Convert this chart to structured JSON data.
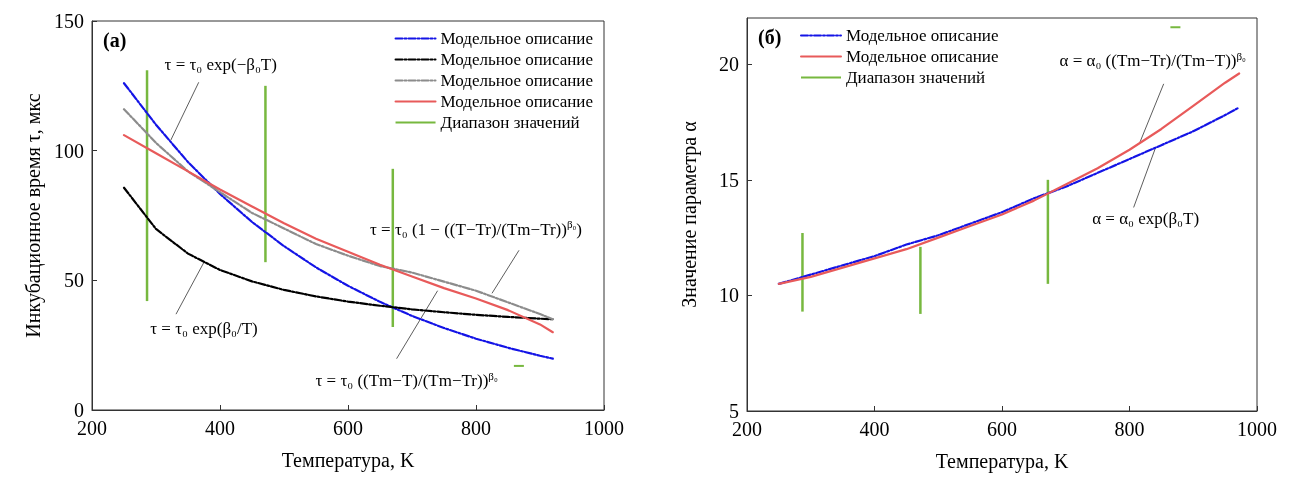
{
  "chart_data": [
    {
      "type": "line",
      "title": "(a)",
      "xlabel": "Температура, K",
      "ylabel": "Инкубационное время τ, мкс",
      "xlim": [
        200,
        1000
      ],
      "xticks": [
        200,
        400,
        600,
        800,
        1000
      ],
      "ylim": [
        0,
        150
      ],
      "yticks": [
        0,
        50,
        100,
        150
      ],
      "grid": false,
      "legend": "top right",
      "marker": "none",
      "series": [
        {
          "name": "Модельное описание",
          "color": "#1414e6",
          "line_style": "dashed",
          "x": [
            250,
            300,
            350,
            400,
            450,
            500,
            550,
            600,
            650,
            700,
            750,
            800,
            850,
            900,
            920
          ],
          "values": [
            126,
            110,
            95.6,
            83.3,
            72.5,
            63.2,
            55,
            47.9,
            41.7,
            36.3,
            31.6,
            27.5,
            24,
            20.9,
            19.8
          ]
        },
        {
          "name": "Модельное описание",
          "color": "#000000",
          "line_style": "dashed",
          "x": [
            250,
            300,
            350,
            400,
            450,
            500,
            550,
            600,
            650,
            700,
            750,
            800,
            850,
            900,
            920
          ],
          "values": [
            85.7,
            69.8,
            60.3,
            54,
            49.6,
            46.3,
            43.8,
            41.8,
            40.2,
            38.8,
            37.7,
            36.7,
            35.9,
            35.2,
            35
          ]
        },
        {
          "name": "Модельное описание",
          "color": "#8c8c8c",
          "line_style": "dashed",
          "x": [
            250,
            300,
            350,
            400,
            450,
            500,
            550,
            600,
            650,
            700,
            750,
            800,
            850,
            900,
            920
          ],
          "values": [
            116,
            103,
            92,
            84,
            76,
            70,
            64,
            59.5,
            55.5,
            53,
            49.5,
            46,
            41.5,
            37,
            35
          ]
        },
        {
          "name": "Модельное описание",
          "color": "#e85a5a",
          "line_style": "solid",
          "x": [
            250,
            300,
            350,
            400,
            450,
            500,
            550,
            600,
            650,
            700,
            750,
            800,
            850,
            900,
            920
          ],
          "values": [
            106,
            99,
            92,
            85,
            78.5,
            72,
            66,
            61,
            56,
            51.5,
            47,
            43,
            38.5,
            33,
            30
          ]
        },
        {
          "name": "Диапазон значений",
          "type": "bar",
          "color": "#77b83f",
          "x": [
            286,
            471,
            670,
            867
          ],
          "base": [
            42,
            57,
            32,
            17
          ],
          "values": [
            89,
            68,
            61,
            0
          ]
        }
      ],
      "annotations": [
        {
          "text": "τ = τ₀ exp(−β₀T)",
          "x": 323,
          "y": 104
        },
        {
          "text": "τ = τ₀ exp(β₀/T)",
          "x": 375,
          "y": 57
        },
        {
          "text": "τ = τ₀ (1 − ((T−Tr)/(Tm−Tr))$^{β₀}$)",
          "x": 825,
          "y": 45
        },
        {
          "text": "τ = τ₀ ((Tm−T)/(Tm−Tr))$^{β₀}$",
          "x": 740,
          "y": 46
        }
      ]
    },
    {
      "type": "line",
      "title": "(б)",
      "xlabel": "Температура, K",
      "ylabel": "Значение параметра α",
      "xlim": [
        200,
        1000
      ],
      "xticks": [
        200,
        400,
        600,
        800,
        1000
      ],
      "ylim": [
        5,
        22
      ],
      "yticks": [
        5,
        10,
        15,
        20
      ],
      "grid": false,
      "legend": "top left",
      "marker": "none",
      "series": [
        {
          "name": "Модельное описание",
          "color": "#1414e6",
          "line_style": "dashed",
          "x": [
            250,
            300,
            350,
            400,
            450,
            500,
            550,
            600,
            650,
            700,
            750,
            800,
            850,
            900,
            950,
            970
          ],
          "values": [
            10.5,
            10.9,
            11.3,
            11.7,
            12.2,
            12.6,
            13.1,
            13.6,
            14.2,
            14.7,
            15.3,
            15.9,
            16.5,
            17.1,
            17.8,
            18.1
          ]
        },
        {
          "name": "Модельное описание",
          "color": "#e85a5a",
          "line_style": "solid",
          "x": [
            250,
            300,
            350,
            400,
            450,
            500,
            550,
            600,
            650,
            700,
            750,
            800,
            850,
            900,
            950,
            972
          ],
          "values": [
            10.5,
            10.8,
            11.2,
            11.6,
            12,
            12.5,
            13,
            13.5,
            14.1,
            14.8,
            15.5,
            16.3,
            17.2,
            18.2,
            19.2,
            19.6
          ]
        },
        {
          "name": "Диапазон значений",
          "type": "bar",
          "color": "#77b83f",
          "x": [
            287,
            472,
            672,
            872
          ],
          "base": [
            9.3,
            9.2,
            10.5,
            21.6
          ],
          "values": [
            3.4,
            2.9,
            4.5,
            0
          ]
        }
      ],
      "annotations": [
        {
          "text": "α = α₀ ((Tm−Tr)/(Tm−T))$^{β₀}$",
          "x": 816,
          "y": 16.6
        },
        {
          "text": "α = α₀ exp(β₀T)",
          "x": 841,
          "y": 16.4
        }
      ]
    }
  ]
}
